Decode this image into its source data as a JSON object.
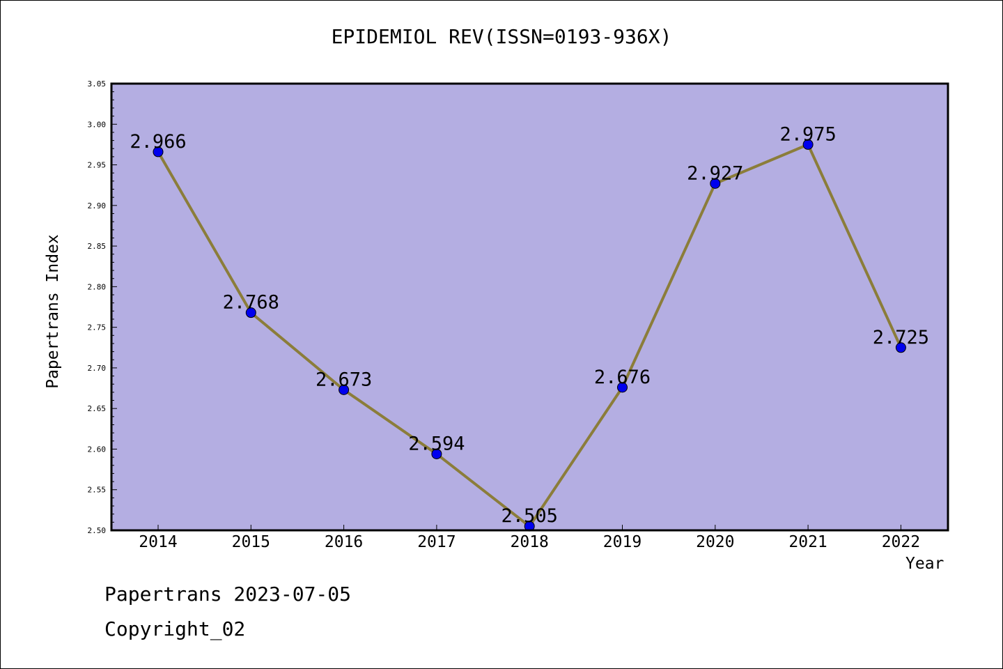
{
  "chart_data": {
    "type": "line",
    "title": "EPIDEMIOL REV(ISSN=0193-936X)",
    "xlabel": "Year",
    "ylabel": "Papertrans Index",
    "categories": [
      "2014",
      "2015",
      "2016",
      "2017",
      "2018",
      "2019",
      "2020",
      "2021",
      "2022"
    ],
    "series": [
      {
        "values": [
          2.966,
          2.768,
          2.673,
          2.594,
          2.505,
          2.676,
          2.927,
          2.975,
          2.725
        ],
        "labels": [
          "2.966",
          "2.768",
          "2.673",
          "2.594",
          "2.505",
          "2.676",
          "2.927",
          "2.975",
          "2.725"
        ]
      }
    ],
    "ylim": [
      2.5,
      3.05
    ],
    "yticks": [
      "2.50",
      "2.55",
      "2.60",
      "2.65",
      "2.70",
      "2.75",
      "2.80",
      "2.85",
      "2.90",
      "2.95",
      "3.00",
      "3.05"
    ],
    "grid": false,
    "colors": {
      "plot_background": "#b4aee2",
      "line": "#8b7d3a",
      "marker": "#0000ee"
    }
  },
  "footer": {
    "date_text": "Papertrans 2023-07-05",
    "copyright_text": "Copyright_02"
  }
}
